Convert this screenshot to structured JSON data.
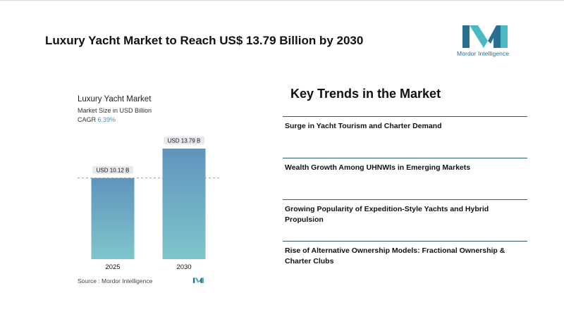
{
  "headline": "Luxury Yacht Market to Reach US$ 13.79 Billion by 2030",
  "brand": {
    "name": "Mordor Intelligence",
    "colors": [
      "#2a6f8f",
      "#4cb8c4"
    ]
  },
  "chart_data": {
    "type": "bar",
    "title": "Luxury Yacht Market",
    "subtitle": "Market Size in USD Billion",
    "cagr_label": "CAGR",
    "cagr_value": "6.39%",
    "categories": [
      "2025",
      "2030"
    ],
    "values": [
      10.12,
      13.79
    ],
    "data_labels": [
      "USD 10.12 B",
      "USD 13.79 B"
    ],
    "ylim": [
      0,
      14.5
    ],
    "grid": false,
    "reference_line_at": 10.12,
    "bar_gradient": [
      "#5f94bd",
      "#7fc6cc"
    ],
    "source": "Source :  Mordor Intelligence"
  },
  "trends": {
    "title": "Key Trends in the Market",
    "items": [
      "Surge in Yacht Tourism and Charter Demand",
      "Wealth Growth Among UHNWIs in Emerging Markets",
      "Growing Popularity of Expedition-Style Yachts and Hybrid Propulsion",
      "Rise of Alternative Ownership Models: Fractional Ownership & Charter Clubs"
    ]
  }
}
